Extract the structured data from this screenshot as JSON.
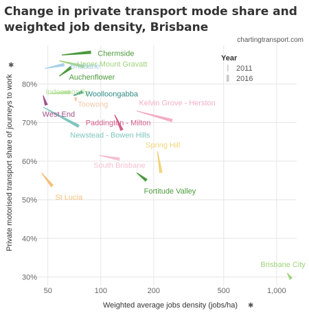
{
  "chart_data": {
    "type": "scatter",
    "title_line1": "Change in private transport mode share and",
    "title_line2": "weighted job density, Brisbane",
    "source": "chartingtransport.com",
    "xlabel": "Weighted average jobs density (jobs/ha)",
    "ylabel": "Private motorised transport share of journeys to work",
    "x_scale": "log",
    "xlim": [
      45,
      1300
    ],
    "ylim": [
      28.5,
      90
    ],
    "x_ticks": [
      50,
      100,
      200,
      500,
      1000
    ],
    "x_tick_labels": [
      "50",
      "100",
      "200",
      "500",
      "1,000"
    ],
    "y_ticks": [
      30,
      40,
      50,
      60,
      70,
      80
    ],
    "y_tick_labels": [
      "30%",
      "40%",
      "50%",
      "60%",
      "70%",
      "80%"
    ],
    "legend": {
      "title": "Year",
      "placement": "top-right",
      "items": [
        "2011",
        "2016"
      ]
    },
    "series": [
      {
        "name": "Chermside",
        "x2011": 60,
        "y2011": 87.5,
        "x2016": 88,
        "y2016": 88.2,
        "color": "#4c9a3c"
      },
      {
        "name": "Upper Mount Gravatt",
        "x2011": 58,
        "y2011": 86.0,
        "x2016": 80,
        "y2016": 84.5,
        "color": "#9ed47a"
      },
      {
        "name": "Brisbane",
        "x2011": 48,
        "y2011": 84.0,
        "x2016": 62,
        "y2016": 85.0,
        "color": "#a8cfe8"
      },
      {
        "name": "Auchenflower",
        "x2011": 58,
        "y2011": 82.0,
        "x2016": 68,
        "y2016": 84.3,
        "color": "#4c9a3c"
      },
      {
        "name": "Indooroopilly",
        "x2011": 50,
        "y2011": 77.5,
        "x2016": 67,
        "y2016": 77.8,
        "color": "#b8e39c"
      },
      {
        "name": "Woolloongabba",
        "x2011": 70,
        "y2011": 77.0,
        "x2016": 79,
        "y2016": 78.0,
        "color": "#2e8b86"
      },
      {
        "name": "Toowong",
        "x2011": 72,
        "y2011": 75.5,
        "x2016": 72,
        "y2016": 76.5,
        "color": "#f2c7a7"
      },
      {
        "name": "West End",
        "x2011": 47,
        "y2011": 77.0,
        "x2016": 49,
        "y2016": 74.5,
        "color": "#a0508c"
      },
      {
        "name": "Kelvin Grove - Herston",
        "x2011": 160,
        "y2011": 73.0,
        "x2016": 255,
        "y2016": 70.5,
        "color": "#f2aec6"
      },
      {
        "name": "Paddington - Milton",
        "x2011": 120,
        "y2011": 72.0,
        "x2016": 132,
        "y2016": 68.0,
        "color": "#d45e8a"
      },
      {
        "name": "Newstead - Bowen Hills",
        "x2011": 47,
        "y2011": 74.0,
        "x2016": 75,
        "y2016": 69.0,
        "color": "#7ec6bd"
      },
      {
        "name": "Spring Hill",
        "x2011": 210,
        "y2011": 62.5,
        "x2016": 220,
        "y2016": 57.0,
        "color": "#f0d57a"
      },
      {
        "name": "South Brisbane",
        "x2011": 98,
        "y2011": 61.5,
        "x2016": 128,
        "y2016": 60.5,
        "color": "#f6bfd1"
      },
      {
        "name": "Fortitude Valley",
        "x2011": 160,
        "y2011": 57.0,
        "x2016": 182,
        "y2016": 55.0,
        "color": "#4c9a3c"
      },
      {
        "name": "St Lucia",
        "x2011": 46,
        "y2011": 57.0,
        "x2016": 53,
        "y2016": 53.5,
        "color": "#f5c07a"
      },
      {
        "name": "Brisbane City",
        "x2011": 1150,
        "y2011": 31.0,
        "x2016": 1210,
        "y2016": 29.5,
        "color": "#9ed47a"
      }
    ],
    "labels": [
      {
        "text": "Chermside",
        "x": 96,
        "y": 88.0,
        "color": "#4c9a3c"
      },
      {
        "text": "Upper Mount Gravatt",
        "x": 73,
        "y": 85.2,
        "color": "#9ed47a"
      },
      {
        "text": "Brisbane",
        "x": 67,
        "y": 84.7,
        "color": "#a8cfe8"
      },
      {
        "text": "Auchenflower",
        "x": 66,
        "y": 81.8,
        "color": "#4c9a3c"
      },
      {
        "text": "Indooroopilly",
        "x": 48.5,
        "y": 78.0,
        "color": "#b8e39c"
      },
      {
        "text": "Woolloongabba",
        "x": 82,
        "y": 77.5,
        "color": "#2e8b86"
      },
      {
        "text": "Toowong",
        "x": 74,
        "y": 74.8,
        "color": "#f2c7a7"
      },
      {
        "text": "West End",
        "x": 46.5,
        "y": 72.2,
        "color": "#a0508c"
      },
      {
        "text": "Kelvin Grove - Herston",
        "x": 165,
        "y": 75.2,
        "color": "#f2aec6"
      },
      {
        "text": "Paddington - Milton",
        "x": 82,
        "y": 70.0,
        "color": "#d45e8a"
      },
      {
        "text": "Newstead - Bowen Hills",
        "x": 67,
        "y": 66.8,
        "color": "#7ec6bd"
      },
      {
        "text": "Spring Hill",
        "x": 180,
        "y": 64.2,
        "color": "#f0d57a"
      },
      {
        "text": "South Brisbane",
        "x": 91,
        "y": 59.0,
        "color": "#f6bfd1"
      },
      {
        "text": "Fortitude Valley",
        "x": 176,
        "y": 52.3,
        "color": "#4c9a3c"
      },
      {
        "text": "St Lucia",
        "x": 55,
        "y": 50.7,
        "color": "#f5c07a"
      },
      {
        "text": "Brisbane City",
        "x": 810,
        "y": 33.3,
        "color": "#9ed47a"
      }
    ],
    "grid": true
  }
}
